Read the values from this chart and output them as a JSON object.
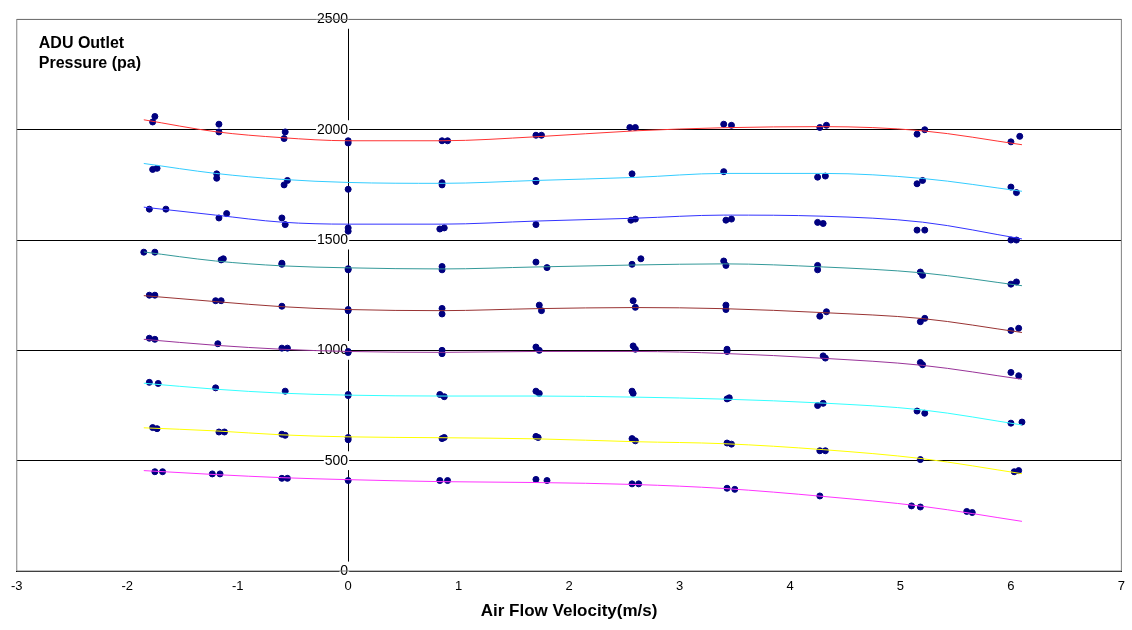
{
  "chart_data": {
    "type": "line",
    "ylabel": "ADU Outlet Pressure (pa)",
    "xlabel": "Air Flow Velocity(m/s)",
    "x": [
      -1.85,
      -1.2,
      -0.6,
      0,
      0.85,
      1.7,
      2.6,
      3.4,
      4.3,
      5.2,
      6.1
    ],
    "xlim": [
      -3,
      7
    ],
    "xticks": [
      -3,
      -2,
      -1,
      0,
      1,
      2,
      3,
      4,
      5,
      6,
      7
    ],
    "ylim": [
      0,
      2500
    ],
    "yticks": [
      0,
      500,
      1000,
      1500,
      2000,
      2500
    ],
    "grid": "y",
    "legend": false,
    "marker": "none",
    "line_style": "solid",
    "series": [
      {
        "color": "#ff3333",
        "values": [
          2045,
          1991,
          1964,
          1950,
          1950,
          1968,
          1995,
          2009,
          2014,
          1995,
          1932
        ]
      },
      {
        "color": "#33ccff",
        "values": [
          1847,
          1802,
          1775,
          1761,
          1757,
          1770,
          1784,
          1802,
          1802,
          1779,
          1721
        ]
      },
      {
        "color": "#3333ff",
        "values": [
          1649,
          1613,
          1581,
          1572,
          1572,
          1586,
          1599,
          1613,
          1608,
          1581,
          1505
        ]
      },
      {
        "color": "#339999",
        "values": [
          1446,
          1405,
          1383,
          1374,
          1369,
          1378,
          1387,
          1392,
          1378,
          1351,
          1293
        ]
      },
      {
        "color": "#993333",
        "values": [
          1248,
          1221,
          1198,
          1185,
          1180,
          1189,
          1194,
          1189,
          1171,
          1144,
          1081
        ]
      },
      {
        "color": "#993399",
        "values": [
          1050,
          1023,
          1005,
          995,
          991,
          995,
          995,
          986,
          964,
          932,
          869
        ]
      },
      {
        "color": "#33ffff",
        "values": [
          851,
          824,
          806,
          797,
          793,
          793,
          788,
          779,
          761,
          730,
          662
        ]
      },
      {
        "color": "#ffff00",
        "values": [
          649,
          635,
          617,
          608,
          604,
          599,
          586,
          577,
          550,
          509,
          441
        ]
      },
      {
        "color": "#ff33ff",
        "values": [
          455,
          437,
          423,
          414,
          405,
          401,
          392,
          374,
          338,
          293,
          225
        ]
      },
      {
        "type": "scatter",
        "color": "#000080",
        "marker": "circle",
        "x": [
          -1.75,
          -1.77,
          -1.17,
          -1.17,
          -0.57,
          -0.58,
          0,
          0,
          0.85,
          0.9,
          1.7,
          1.75,
          2.55,
          2.6,
          3.4,
          3.47,
          4.27,
          4.33,
          5.15,
          5.22,
          6.0,
          6.08,
          -1.77,
          -1.73,
          -1.19,
          -1.19,
          -0.58,
          -0.55,
          0,
          0.85,
          0.85,
          1.7,
          1.7,
          2.57,
          3.4,
          4.25,
          4.32,
          5.15,
          5.2,
          6.0,
          6.05,
          -1.8,
          -1.65,
          -1.17,
          -1.1,
          -0.6,
          -0.57,
          0,
          0,
          0.83,
          0.87,
          1.7,
          2.56,
          2.6,
          3.42,
          3.47,
          4.25,
          4.3,
          5.15,
          5.22,
          6.0,
          6.05,
          -1.85,
          -1.75,
          -1.15,
          -1.13,
          -0.6,
          -0.6,
          0,
          0,
          0.85,
          0.85,
          1.7,
          1.8,
          2.57,
          2.65,
          3.4,
          3.42,
          4.25,
          4.25,
          5.18,
          5.2,
          6.0,
          6.05,
          -1.8,
          -1.75,
          -1.2,
          -1.15,
          -0.6,
          0,
          0,
          0.85,
          0.85,
          1.73,
          1.75,
          2.58,
          2.6,
          3.42,
          3.42,
          4.27,
          4.33,
          5.18,
          5.22,
          6.0,
          6.07,
          -1.8,
          -1.75,
          -1.18,
          -0.6,
          -0.55,
          0,
          0,
          0.85,
          0.85,
          1.7,
          1.73,
          2.58,
          2.6,
          3.43,
          3.43,
          4.3,
          4.32,
          5.18,
          5.2,
          6.0,
          6.07,
          -1.8,
          -1.72,
          -1.2,
          -0.57,
          0,
          0,
          0.83,
          0.87,
          1.7,
          1.73,
          2.57,
          2.58,
          3.43,
          3.45,
          4.25,
          4.3,
          5.15,
          5.22,
          6.0,
          6.1,
          -1.77,
          -1.73,
          -1.17,
          -1.12,
          -0.6,
          -0.57,
          0,
          0,
          0.85,
          0.87,
          1.7,
          1.72,
          2.57,
          2.6,
          3.43,
          3.47,
          4.27,
          4.32,
          5.18,
          6.03,
          6.07,
          -1.75,
          -1.68,
          -1.23,
          -1.16,
          -0.6,
          -0.55,
          0,
          0.83,
          0.9,
          1.7,
          1.8,
          2.57,
          2.63,
          3.43,
          3.5,
          4.27,
          5.1,
          5.18,
          5.6,
          5.65
        ],
        "values": [
          2060,
          2035,
          2025,
          1990,
          1990,
          1960,
          1950,
          1940,
          1950,
          1950,
          1975,
          1975,
          2010,
          2010,
          2025,
          2020,
          2010,
          2020,
          1980,
          2000,
          1945,
          1970,
          1820,
          1825,
          1800,
          1780,
          1750,
          1770,
          1730,
          1760,
          1750,
          1770,
          1765,
          1800,
          1810,
          1785,
          1790,
          1755,
          1770,
          1740,
          1715,
          1640,
          1640,
          1600,
          1620,
          1600,
          1570,
          1555,
          1540,
          1550,
          1555,
          1570,
          1590,
          1595,
          1590,
          1595,
          1580,
          1575,
          1545,
          1545,
          1500,
          1500,
          1445,
          1445,
          1410,
          1415,
          1395,
          1390,
          1370,
          1365,
          1380,
          1365,
          1400,
          1375,
          1390,
          1415,
          1405,
          1385,
          1385,
          1365,
          1355,
          1340,
          1300,
          1310,
          1250,
          1250,
          1225,
          1225,
          1200,
          1185,
          1180,
          1190,
          1165,
          1205,
          1180,
          1225,
          1195,
          1205,
          1185,
          1155,
          1175,
          1130,
          1145,
          1090,
          1100,
          1055,
          1050,
          1030,
          1010,
          1010,
          995,
          990,
          1000,
          985,
          1015,
          1000,
          1020,
          1005,
          1005,
          995,
          975,
          965,
          945,
          935,
          900,
          885,
          855,
          850,
          830,
          815,
          800,
          795,
          800,
          790,
          815,
          805,
          815,
          805,
          780,
          785,
          750,
          760,
          725,
          715,
          670,
          675,
          650,
          645,
          630,
          630,
          620,
          615,
          605,
          595,
          600,
          605,
          610,
          605,
          600,
          590,
          580,
          575,
          545,
          545,
          505,
          450,
          455,
          450,
          450,
          440,
          440,
          420,
          420,
          410,
          410,
          410,
          415,
          410,
          395,
          395,
          375,
          370,
          340,
          295,
          290,
          270,
          265
        ]
      }
    ]
  }
}
